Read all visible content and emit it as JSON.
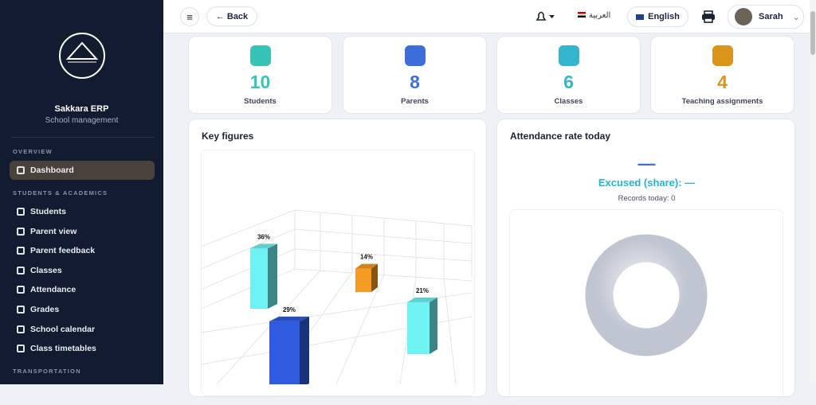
{
  "sidebar": {
    "brand": "Sakkara ERP",
    "subtitle": "School management",
    "sections": [
      {
        "title": "OVERVIEW",
        "items": [
          "Dashboard"
        ]
      },
      {
        "title": "STUDENTS & ACADEMICS",
        "items": [
          "Students",
          "Parent view",
          "Parent feedback",
          "Classes",
          "Attendance",
          "Grades",
          "School calendar",
          "Class timetables"
        ]
      },
      {
        "title": "TRANSPORTATION",
        "items": []
      }
    ]
  },
  "header": {
    "back": "Back",
    "language_ar": "العربية",
    "language_en": "English",
    "user": "Sarah"
  },
  "stats": [
    {
      "value": 10,
      "label": "Students",
      "color": "#36c3b5"
    },
    {
      "value": 8,
      "label": "Parents",
      "color": "#3e6fd8"
    },
    {
      "value": 6,
      "label": "Classes",
      "color": "#35b4cf"
    },
    {
      "value": 4,
      "label": "Teaching assignments",
      "color": "#d99419"
    }
  ],
  "key_figures": {
    "title": "Key figures",
    "values": [
      36,
      14,
      29,
      21
    ],
    "value_labels": [
      "36%",
      "14%",
      "29%",
      "21%"
    ],
    "colors": [
      "#6ff2f2",
      "#f59a23",
      "#2f5be0",
      "#6ff2f2"
    ]
  },
  "attendance": {
    "title": "Attendance rate today",
    "rate": "—",
    "excused": "Excused (share): —",
    "records": "Records today: 0"
  }
}
